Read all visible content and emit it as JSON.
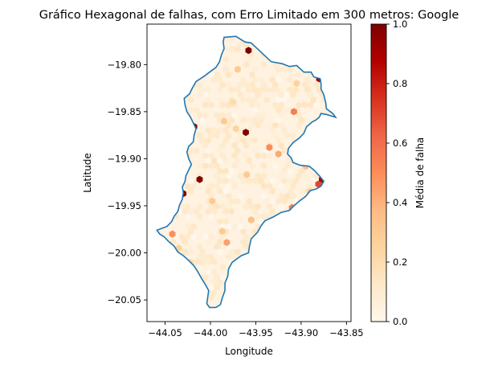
{
  "chart_data": {
    "type": "heatmap",
    "subtype": "hexbin-map",
    "title": "Gráfico Hexagonal de falhas, com Erro Limitado em 300 metros: Google",
    "xlabel": "Longitude",
    "ylabel": "Latitude",
    "xlim": [
      -44.07,
      -43.845
    ],
    "ylim": [
      -20.073,
      -19.757
    ],
    "x_ticks": [
      -44.05,
      -44.0,
      -43.95,
      -43.9,
      -43.85
    ],
    "x_tick_labels": [
      "−44.05",
      "−44.00",
      "−43.95",
      "−43.90",
      "−43.85"
    ],
    "y_ticks": [
      -19.8,
      -19.85,
      -19.9,
      -19.95,
      -20.0,
      -20.05
    ],
    "y_tick_labels": [
      "−19.80",
      "−19.85",
      "−19.90",
      "−19.95",
      "−20.00",
      "−20.05"
    ],
    "grid": false,
    "colormap": "OrRd",
    "colorbar": {
      "label": "Média de falha",
      "range": [
        0,
        1
      ],
      "ticks": [
        0.0,
        0.2,
        0.4,
        0.6,
        0.8,
        1.0
      ],
      "tick_labels": [
        "0.0",
        "0.2",
        "0.4",
        "0.6",
        "0.8",
        "1.0"
      ],
      "stops": [
        "#fff7ec",
        "#fee8c8",
        "#fdd49e",
        "#fdbb84",
        "#fc8d59",
        "#ef6548",
        "#d7301f",
        "#b30000",
        "#7f0000"
      ]
    },
    "boundary_color": "#1f77b4",
    "boundary": [
      [
        -43.985,
        -19.771
      ],
      [
        -43.972,
        -19.77
      ],
      [
        -43.962,
        -19.776
      ],
      [
        -43.955,
        -19.777
      ],
      [
        -43.944,
        -19.787
      ],
      [
        -43.933,
        -19.797
      ],
      [
        -43.921,
        -19.799
      ],
      [
        -43.913,
        -19.802
      ],
      [
        -43.905,
        -19.801
      ],
      [
        -43.897,
        -19.808
      ],
      [
        -43.889,
        -19.808
      ],
      [
        -43.886,
        -19.813
      ],
      [
        -43.879,
        -19.815
      ],
      [
        -43.878,
        -19.82
      ],
      [
        -43.878,
        -19.826
      ],
      [
        -43.875,
        -19.832
      ],
      [
        -43.873,
        -19.84
      ],
      [
        -43.872,
        -19.847
      ],
      [
        -43.865,
        -19.852
      ],
      [
        -43.862,
        -19.856
      ],
      [
        -43.872,
        -19.853
      ],
      [
        -43.878,
        -19.852
      ],
      [
        -43.88,
        -19.856
      ],
      [
        -43.884,
        -19.859
      ],
      [
        -43.888,
        -19.861
      ],
      [
        -43.894,
        -19.866
      ],
      [
        -43.897,
        -19.873
      ],
      [
        -43.902,
        -19.878
      ],
      [
        -43.909,
        -19.883
      ],
      [
        -43.914,
        -19.889
      ],
      [
        -43.915,
        -19.895
      ],
      [
        -43.911,
        -19.899
      ],
      [
        -43.909,
        -19.904
      ],
      [
        -43.901,
        -19.907
      ],
      [
        -43.891,
        -19.908
      ],
      [
        -43.886,
        -19.912
      ],
      [
        -43.88,
        -19.918
      ],
      [
        -43.875,
        -19.924
      ],
      [
        -43.878,
        -19.929
      ],
      [
        -43.883,
        -19.932
      ],
      [
        -43.89,
        -19.934
      ],
      [
        -43.895,
        -19.94
      ],
      [
        -43.902,
        -19.945
      ],
      [
        -43.908,
        -19.95
      ],
      [
        -43.913,
        -19.955
      ],
      [
        -43.922,
        -19.957
      ],
      [
        -43.931,
        -19.962
      ],
      [
        -43.94,
        -19.966
      ],
      [
        -43.944,
        -19.971
      ],
      [
        -43.948,
        -19.978
      ],
      [
        -43.955,
        -19.985
      ],
      [
        -43.957,
        -19.993
      ],
      [
        -43.958,
        -20.0
      ],
      [
        -43.966,
        -20.003
      ],
      [
        -43.976,
        -20.01
      ],
      [
        -43.98,
        -20.017
      ],
      [
        -43.981,
        -20.025
      ],
      [
        -43.984,
        -20.032
      ],
      [
        -43.984,
        -20.04
      ],
      [
        -43.987,
        -20.048
      ],
      [
        -43.989,
        -20.055
      ],
      [
        -43.994,
        -20.058
      ],
      [
        -44.001,
        -20.058
      ],
      [
        -44.004,
        -20.054
      ],
      [
        -44.003,
        -20.047
      ],
      [
        -44.002,
        -20.04
      ],
      [
        -44.006,
        -20.033
      ],
      [
        -44.01,
        -20.027
      ],
      [
        -44.014,
        -20.02
      ],
      [
        -44.018,
        -20.014
      ],
      [
        -44.024,
        -20.008
      ],
      [
        -44.03,
        -20.003
      ],
      [
        -44.036,
        -19.999
      ],
      [
        -44.04,
        -19.993
      ],
      [
        -44.046,
        -19.988
      ],
      [
        -44.051,
        -19.983
      ],
      [
        -44.056,
        -19.98
      ],
      [
        -44.059,
        -19.976
      ],
      [
        -44.054,
        -19.974
      ],
      [
        -44.048,
        -19.972
      ],
      [
        -44.043,
        -19.967
      ],
      [
        -44.04,
        -19.961
      ],
      [
        -44.036,
        -19.956
      ],
      [
        -44.034,
        -19.949
      ],
      [
        -44.031,
        -19.943
      ],
      [
        -44.03,
        -19.936
      ],
      [
        -44.031,
        -19.93
      ],
      [
        -44.028,
        -19.924
      ],
      [
        -44.027,
        -19.918
      ],
      [
        -44.024,
        -19.912
      ],
      [
        -44.021,
        -19.906
      ],
      [
        -44.024,
        -19.9
      ],
      [
        -44.026,
        -19.893
      ],
      [
        -44.024,
        -19.887
      ],
      [
        -44.019,
        -19.882
      ],
      [
        -44.018,
        -19.875
      ],
      [
        -44.016,
        -19.868
      ],
      [
        -44.019,
        -19.862
      ],
      [
        -44.022,
        -19.856
      ],
      [
        -44.026,
        -19.85
      ],
      [
        -44.028,
        -19.843
      ],
      [
        -44.029,
        -19.836
      ],
      [
        -44.023,
        -19.831
      ],
      [
        -44.02,
        -19.825
      ],
      [
        -44.016,
        -19.818
      ],
      [
        -44.008,
        -19.813
      ],
      [
        -44.001,
        -19.808
      ],
      [
        -43.994,
        -19.803
      ],
      [
        -43.99,
        -19.797
      ],
      [
        -43.988,
        -19.79
      ],
      [
        -43.985,
        -19.783
      ],
      [
        -43.986,
        -19.776
      ],
      [
        -43.985,
        -19.771
      ]
    ],
    "highlight_cells": [
      {
        "x": -43.958,
        "y": -19.785,
        "value": 1.0
      },
      {
        "x": -43.88,
        "y": -19.815,
        "value": 0.92
      },
      {
        "x": -44.018,
        "y": -19.866,
        "value": 0.98
      },
      {
        "x": -43.961,
        "y": -19.872,
        "value": 1.0
      },
      {
        "x": -44.012,
        "y": -19.922,
        "value": 1.0
      },
      {
        "x": -44.03,
        "y": -19.937,
        "value": 0.98
      },
      {
        "x": -43.877,
        "y": -19.922,
        "value": 0.88
      },
      {
        "x": -43.908,
        "y": -19.85,
        "value": 0.55
      },
      {
        "x": -43.935,
        "y": -19.888,
        "value": 0.5
      },
      {
        "x": -43.925,
        "y": -19.895,
        "value": 0.42
      },
      {
        "x": -43.881,
        "y": -19.927,
        "value": 0.7
      },
      {
        "x": -43.91,
        "y": -19.952,
        "value": 0.55
      },
      {
        "x": -43.982,
        "y": -19.989,
        "value": 0.45
      },
      {
        "x": -44.042,
        "y": -19.98,
        "value": 0.5
      },
      {
        "x": -44.047,
        "y": -19.992,
        "value": 0.35
      },
      {
        "x": -43.97,
        "y": -19.805,
        "value": 0.3
      },
      {
        "x": -43.985,
        "y": -19.86,
        "value": 0.3
      },
      {
        "x": -43.96,
        "y": -19.917,
        "value": 0.3
      },
      {
        "x": -43.955,
        "y": -19.965,
        "value": 0.35
      },
      {
        "x": -43.895,
        "y": -19.908,
        "value": 0.35
      },
      {
        "x": -43.89,
        "y": -19.935,
        "value": 0.3
      },
      {
        "x": -43.998,
        "y": -19.945,
        "value": 0.3
      },
      {
        "x": -44.035,
        "y": -19.995,
        "value": 0.25
      },
      {
        "x": -44.022,
        "y": -20.01,
        "value": 0.2
      },
      {
        "x": -43.972,
        "y": -19.868,
        "value": 0.25
      },
      {
        "x": -43.905,
        "y": -19.82,
        "value": 0.25
      },
      {
        "x": -43.987,
        "y": -19.977,
        "value": 0.3
      },
      {
        "x": -43.975,
        "y": -19.84,
        "value": 0.2
      }
    ]
  }
}
